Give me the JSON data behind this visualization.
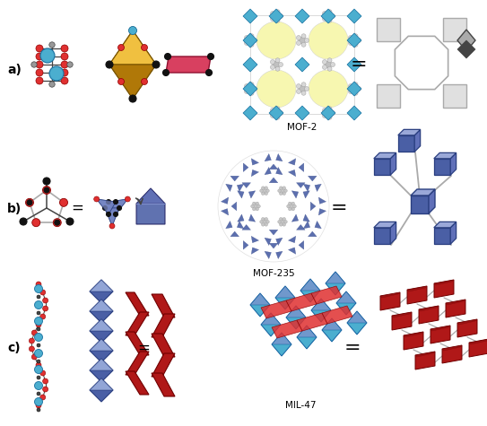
{
  "background_color": "#ffffff",
  "label_a": "a)",
  "label_b": "b)",
  "label_c": "c)",
  "label_mof2": "MOF-2",
  "label_mof235": "MOF-235",
  "label_mil47": "MIL-47",
  "eq_sign": "=",
  "colors": {
    "cyan": "#4baecf",
    "red": "#e03030",
    "gray": "#999999",
    "dark_gray": "#444444",
    "gold": "#d4950a",
    "gold_light": "#f0c040",
    "pink": "#d84060",
    "black": "#111111",
    "blue_dark": "#4a5fa5",
    "blue_mid": "#6070b8",
    "blue_light": "#8090cc",
    "blue_top": "#9aa8d8",
    "yellow_light": "#f8f8b0",
    "white": "#ffffff",
    "light_gray": "#cccccc",
    "medium_gray": "#aaaaaa",
    "dark_red": "#8b1010",
    "crimson": "#b01818",
    "crimson_light": "#cc2020"
  },
  "fig_width": 5.43,
  "fig_height": 4.75,
  "dpi": 100
}
